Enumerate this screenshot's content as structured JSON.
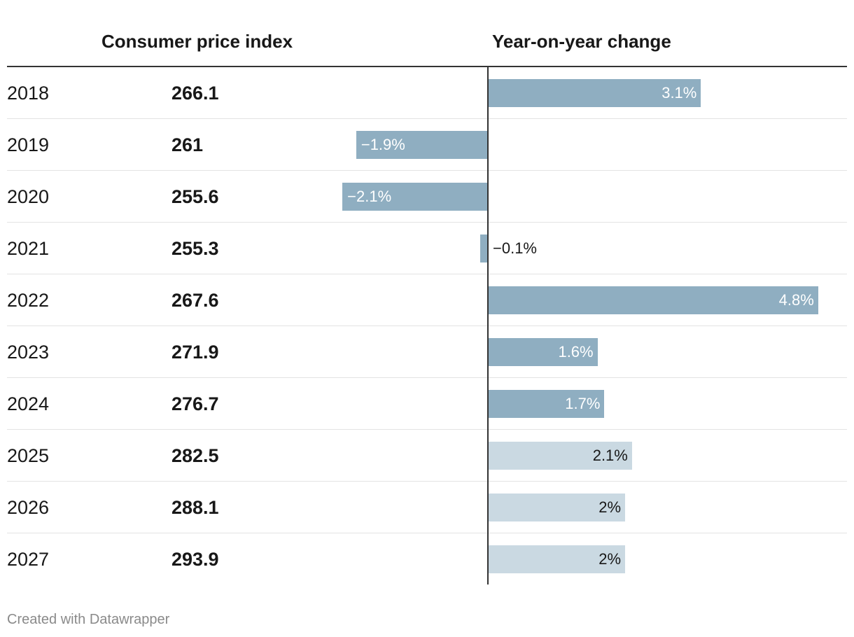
{
  "header": {
    "cpi_title": "Consumer price index",
    "yoy_title": "Year-on-year change"
  },
  "footer": {
    "credit": "Created with Datawrapper"
  },
  "colors": {
    "actual_bar": "#8faec1",
    "forecast_bar": "#cad9e2",
    "label_on_dark": "#ffffff",
    "label_on_light": "#181818"
  },
  "chart_data": {
    "type": "table",
    "columns": [
      "Consumer price index",
      "Year-on-year change"
    ],
    "x_domain": [
      -2.1,
      4.8
    ],
    "rows": [
      {
        "year": "2018",
        "cpi": "266.1",
        "change": 3.1,
        "label": "3.1%",
        "forecast": false
      },
      {
        "year": "2019",
        "cpi": "261",
        "change": -1.9,
        "label": "−1.9%",
        "forecast": false
      },
      {
        "year": "2020",
        "cpi": "255.6",
        "change": -2.1,
        "label": "−2.1%",
        "forecast": false
      },
      {
        "year": "2021",
        "cpi": "255.3",
        "change": -0.1,
        "label": "−0.1%",
        "forecast": false
      },
      {
        "year": "2022",
        "cpi": "267.6",
        "change": 4.8,
        "label": "4.8%",
        "forecast": false
      },
      {
        "year": "2023",
        "cpi": "271.9",
        "change": 1.6,
        "label": "1.6%",
        "forecast": false
      },
      {
        "year": "2024",
        "cpi": "276.7",
        "change": 1.7,
        "label": "1.7%",
        "forecast": false
      },
      {
        "year": "2025",
        "cpi": "282.5",
        "change": 2.1,
        "label": "2.1%",
        "forecast": true
      },
      {
        "year": "2026",
        "cpi": "288.1",
        "change": 2,
        "label": "2%",
        "forecast": true
      },
      {
        "year": "2027",
        "cpi": "293.9",
        "change": 2,
        "label": "2%",
        "forecast": true
      }
    ]
  }
}
